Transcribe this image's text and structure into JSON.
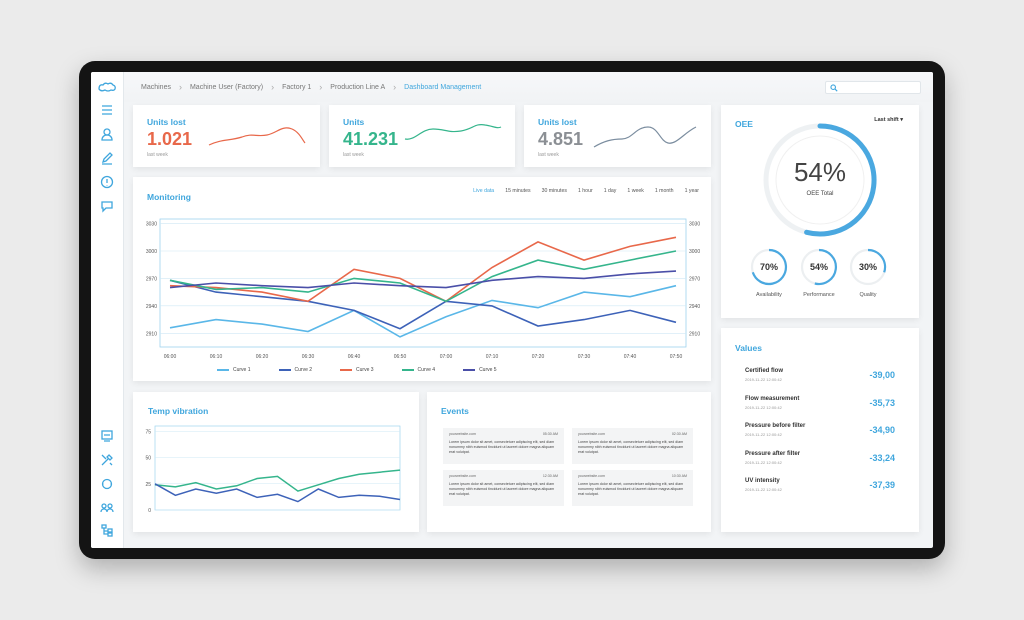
{
  "breadcrumb": [
    "Machines",
    "Machine User (Factory)",
    "Factory 1",
    "Production Line A",
    "Dashboard Management"
  ],
  "kpis": [
    {
      "title": "Units lost",
      "value": "1.021",
      "sub": "last week",
      "color": "#e8684a"
    },
    {
      "title": "Units",
      "value": "41.231",
      "sub": "last week",
      "color": "#35b58c"
    },
    {
      "title": "Units lost",
      "value": "4.851",
      "sub": "last week",
      "color": "#8b8f94"
    }
  ],
  "monitoring": {
    "title": "Monitoring",
    "tabs": [
      "Live data",
      "15 minutes",
      "30 minutes",
      "1 hour",
      "1 day",
      "1 week",
      "1 month",
      "1 year"
    ],
    "active_tab": "Live data"
  },
  "oee": {
    "title": "OEE",
    "dropdown": "Last shift",
    "total_value": "54%",
    "total_label": "OEE Total",
    "total_fraction": 0.54,
    "gauges": [
      {
        "value": "70%",
        "label": "Availability",
        "fraction": 0.7
      },
      {
        "value": "54%",
        "label": "Performance",
        "fraction": 0.54
      },
      {
        "value": "30%",
        "label": "Quality",
        "fraction": 0.3
      }
    ]
  },
  "values": {
    "title": "Values",
    "items": [
      {
        "name": "Certified flow",
        "date": "2019-11-22 12:00:42",
        "value": "-39,00"
      },
      {
        "name": "Flow measurement",
        "date": "2019-11-22 12:00:42",
        "value": "-35,73"
      },
      {
        "name": "Pressure before filter",
        "date": "2019-11-22 12:00:42",
        "value": "-34,90"
      },
      {
        "name": "Pressure after filter",
        "date": "2019-11-22 12:00:42",
        "value": "-33,24"
      },
      {
        "name": "UV intensity",
        "date": "2019-11-22 12:00:42",
        "value": "-37,39"
      }
    ]
  },
  "temp": {
    "title": "Temp vibration"
  },
  "events": {
    "title": "Events",
    "items": [
      {
        "site": "yourwebsite.com",
        "time": "05:30 AM",
        "text": "Lorem ipsum dolor sit amet, consectetuer adipiscing elit, sed diam nonummy nibh euismod tincidunt ut laoreet dolore magna aliquam erat volutpat."
      },
      {
        "site": "yourwebsite.com",
        "time": "02:30 AM",
        "text": "Lorem ipsum dolor sit amet, consectetuer adipiscing elit, sed diam nonummy nibh euismod tincidunt ut laoreet dolore magna aliquam erat volutpat."
      },
      {
        "site": "yourwebsite.com",
        "time": "12:30 AM",
        "text": "Lorem ipsum dolor sit amet, consectetuer adipiscing elit, sed diam nonummy nibh euismod tincidunt ut laoreet dolore magna aliquam erat volutpat."
      },
      {
        "site": "yourwebsite.com",
        "time": "10:30 AM",
        "text": "Lorem ipsum dolor sit amet, consectetuer adipiscing elit, sed diam nonummy nibh euismod tincidunt ut laoreet dolore magna aliquam erat volutpat."
      }
    ]
  },
  "sidebar_icons": [
    "logo-icon",
    "menu-icon",
    "user-icon",
    "edit-icon",
    "alert-icon",
    "chat-icon",
    "monitor-icon",
    "tools-icon",
    "support-icon",
    "team-icon",
    "hierarchy-icon"
  ],
  "chart_data": [
    {
      "type": "line",
      "title": "Monitoring",
      "x": [
        "06:00",
        "06:10",
        "06:20",
        "06:30",
        "06:40",
        "06:50",
        "07:00",
        "07:10",
        "07:20",
        "07:30",
        "07:40",
        "07:50"
      ],
      "y_ticks": [
        2910,
        2940,
        2970,
        3000,
        3030
      ],
      "ylim": [
        2895,
        3035
      ],
      "series": [
        {
          "name": "Curve 1",
          "color": "#5ab7e8",
          "values": [
            2916,
            2925,
            2920,
            2912,
            2935,
            2906,
            2928,
            2946,
            2938,
            2955,
            2950,
            2962
          ]
        },
        {
          "name": "Curve 2",
          "color": "#3d62b8",
          "values": [
            2968,
            2955,
            2950,
            2945,
            2935,
            2915,
            2945,
            2940,
            2918,
            2925,
            2935,
            2922
          ]
        },
        {
          "name": "Curve 3",
          "color": "#e8684a",
          "values": [
            2962,
            2960,
            2955,
            2945,
            2980,
            2970,
            2945,
            2982,
            3010,
            2990,
            3005,
            3015
          ]
        },
        {
          "name": "Curve 4",
          "color": "#35b58c",
          "values": [
            2968,
            2958,
            2960,
            2955,
            2970,
            2965,
            2945,
            2972,
            2990,
            2980,
            2990,
            3000
          ]
        },
        {
          "name": "Curve 5",
          "color": "#4a4fa8",
          "values": [
            2960,
            2965,
            2962,
            2960,
            2965,
            2962,
            2960,
            2968,
            2972,
            2970,
            2975,
            2978
          ]
        }
      ],
      "legend": "bottom",
      "grid": true
    },
    {
      "type": "line",
      "title": "Temp vibration",
      "y_ticks": [
        0,
        25,
        50,
        75
      ],
      "ylim": [
        0,
        80
      ],
      "series": [
        {
          "color": "#35b58c",
          "values": [
            24,
            22,
            26,
            20,
            23,
            30,
            32,
            18,
            24,
            30,
            34,
            36,
            38
          ]
        },
        {
          "color": "#3d62b8",
          "values": [
            25,
            14,
            20,
            16,
            20,
            12,
            15,
            8,
            20,
            12,
            14,
            13,
            10
          ]
        }
      ],
      "grid": true
    }
  ]
}
